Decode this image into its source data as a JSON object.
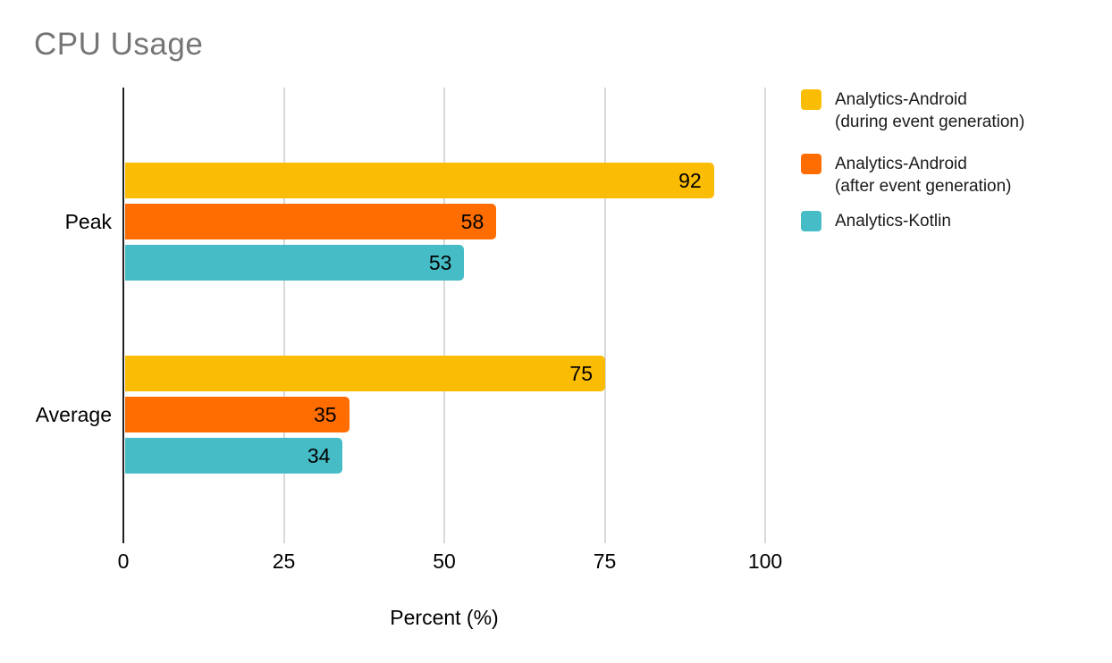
{
  "title": "CPU Usage",
  "colors": {
    "background": "#ffffff",
    "title_text": "#757575",
    "gridline": "#d9d9d9",
    "axis_line": "#212121",
    "label_text": "#000000",
    "series_yellow": "#FBBC04",
    "series_orange": "#FF6D01",
    "series_teal": "#46BDC6"
  },
  "chart_data": {
    "type": "bar",
    "orientation": "horizontal",
    "title": "CPU Usage",
    "xlabel": "Percent (%)",
    "ylabel": "",
    "categories": [
      "Peak",
      "Average"
    ],
    "series": [
      {
        "name": "Analytics-Android (during event generation)",
        "label_lines": [
          "Analytics-Android",
          "(during event generation)"
        ],
        "color": "#FBBC04",
        "values": [
          92,
          75
        ]
      },
      {
        "name": "Analytics-Android (after event generation)",
        "label_lines": [
          "Analytics-Android",
          "(after event generation)"
        ],
        "color": "#FF6D01",
        "values": [
          58,
          35
        ]
      },
      {
        "name": "Analytics-Kotlin",
        "label_lines": [
          "Analytics-Kotlin"
        ],
        "color": "#46BDC6",
        "values": [
          53,
          34
        ]
      }
    ],
    "xticks": [
      0,
      25,
      50,
      75,
      100
    ],
    "xlim": [
      0,
      100
    ],
    "grid": true,
    "data_labels": true,
    "legend_position": "right"
  }
}
